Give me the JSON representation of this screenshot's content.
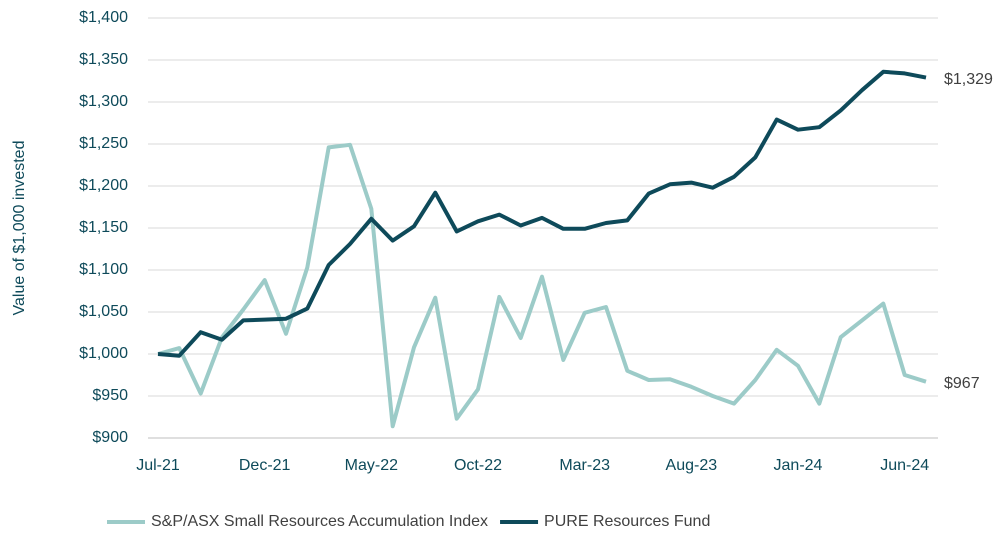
{
  "chart_data": {
    "type": "line",
    "y_label": "Value of $1,000 invested",
    "categories": [
      "Jul-21",
      null,
      null,
      null,
      null,
      "Dec-21",
      null,
      null,
      null,
      null,
      "May-22",
      null,
      null,
      null,
      null,
      "Oct-22",
      null,
      null,
      null,
      null,
      "Mar-23",
      null,
      null,
      null,
      null,
      "Aug-23",
      null,
      null,
      null,
      null,
      "Jan-24",
      null,
      null,
      null,
      null,
      "Jun-24",
      null
    ],
    "series": [
      {
        "name": "S&P/ASX Small Resources Accumulation Index",
        "color": "#9ccbc8",
        "values": [
          1000,
          1007,
          953,
          1020,
          1053,
          1088,
          1024,
          1103,
          1246,
          1249,
          1173,
          914,
          1008,
          1067,
          923,
          958,
          1068,
          1019,
          1092,
          993,
          1049,
          1056,
          980,
          969,
          970,
          961,
          950,
          941,
          969,
          1005,
          986,
          941,
          1020,
          1040,
          1060,
          975,
          967
        ],
        "value_labels": [
          null,
          null,
          null,
          null,
          null,
          null,
          null,
          null,
          null,
          null,
          null,
          null,
          null,
          null,
          null,
          null,
          null,
          null,
          null,
          null,
          null,
          null,
          null,
          null,
          null,
          null,
          null,
          null,
          null,
          null,
          null,
          null,
          null,
          null,
          null,
          null,
          "$967"
        ]
      },
      {
        "name": "PURE Resources Fund",
        "color": "#0e4a5a",
        "values": [
          1000,
          998,
          1026,
          1017,
          1040,
          1041,
          1042,
          1054,
          1106,
          1131,
          1161,
          1135,
          1152,
          1192,
          1146,
          1158,
          1166,
          1153,
          1162,
          1149,
          1149,
          1156,
          1159,
          1191,
          1202,
          1204,
          1198,
          1211,
          1234,
          1279,
          1267,
          1270,
          1290,
          1314,
          1336,
          1334,
          1329
        ],
        "value_labels": [
          null,
          null,
          null,
          null,
          null,
          null,
          null,
          null,
          null,
          null,
          null,
          null,
          null,
          null,
          null,
          null,
          null,
          null,
          null,
          null,
          null,
          null,
          null,
          null,
          null,
          null,
          null,
          null,
          null,
          null,
          null,
          null,
          null,
          null,
          null,
          null,
          "$1,329"
        ]
      }
    ],
    "ylim": [
      900,
      1400
    ],
    "yticks": [
      {
        "value": 900,
        "label": "$900"
      },
      {
        "value": 950,
        "label": "$950"
      },
      {
        "value": 1000,
        "label": "$1,000"
      },
      {
        "value": 1050,
        "label": "$1,050"
      },
      {
        "value": 1100,
        "label": "$1,100"
      },
      {
        "value": 1150,
        "label": "$1,150"
      },
      {
        "value": 1200,
        "label": "$1,200"
      },
      {
        "value": 1250,
        "label": "$1,250"
      },
      {
        "value": 1300,
        "label": "$1,300"
      },
      {
        "value": 1350,
        "label": "$1,350"
      },
      {
        "value": 1400,
        "label": "$1,400"
      }
    ],
    "grid": true,
    "legend": "bottom"
  }
}
